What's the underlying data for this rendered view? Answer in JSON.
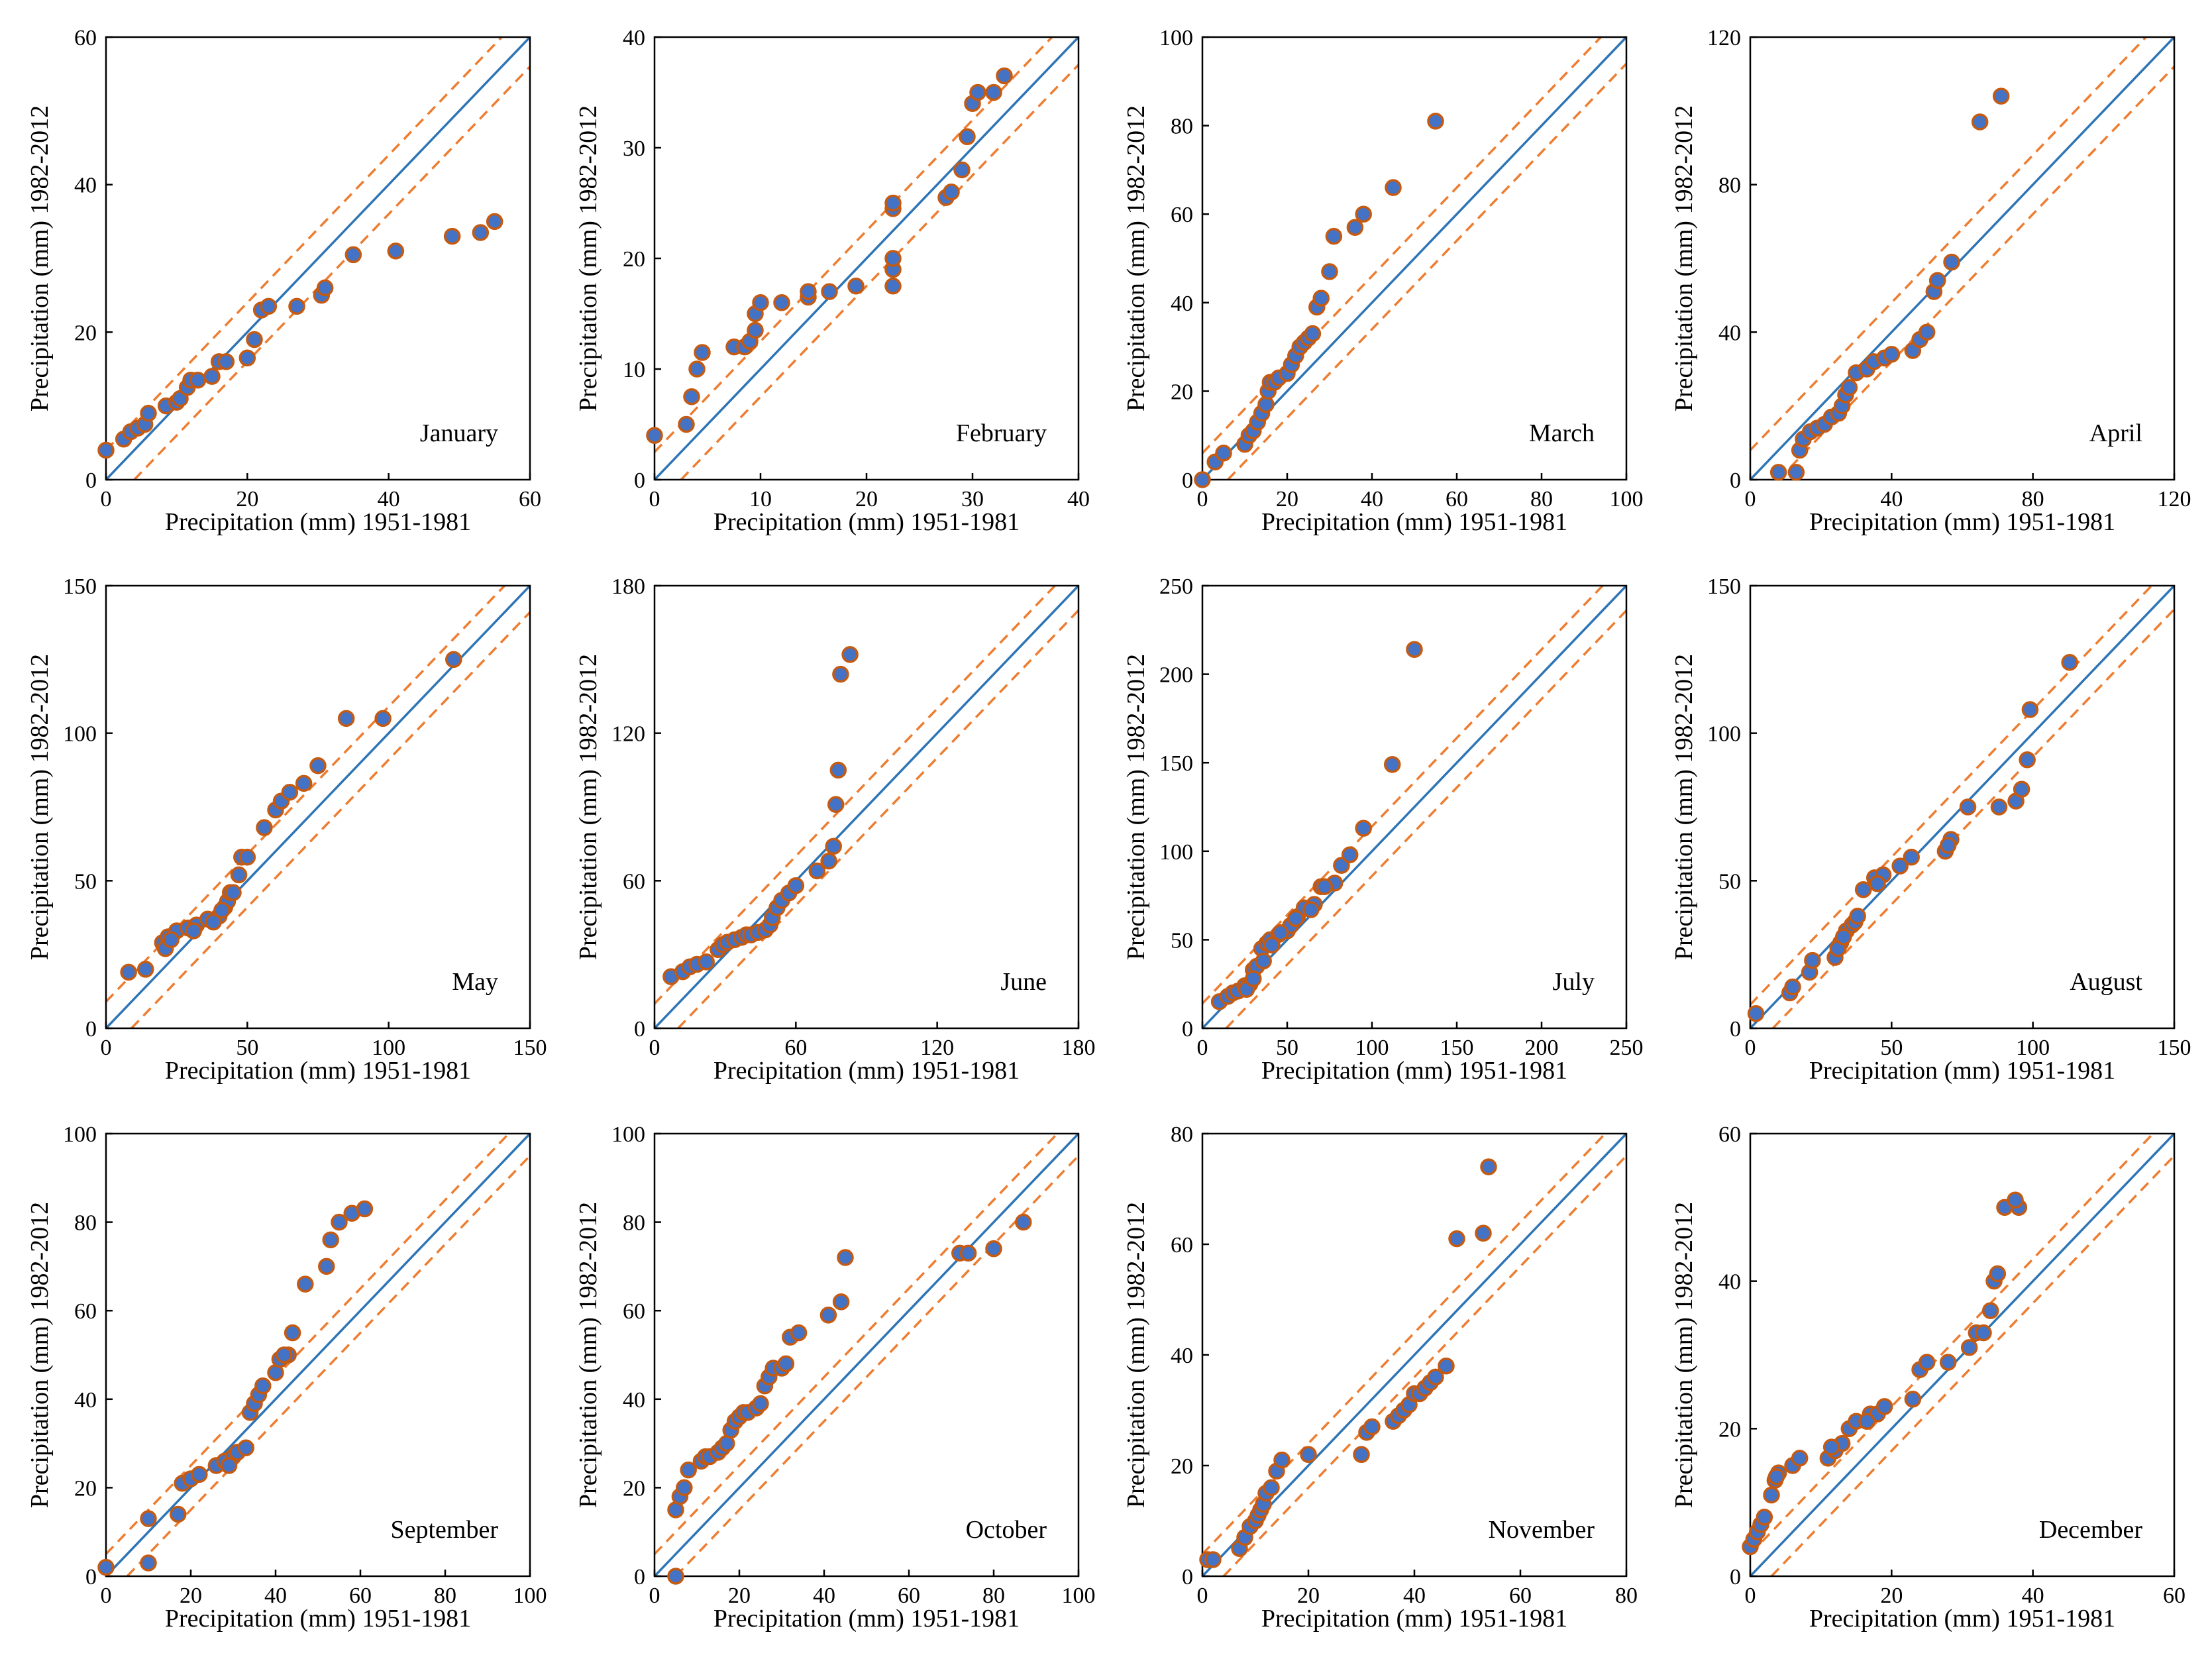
{
  "colors": {
    "identity_line": "#2E75B6",
    "bound_line": "#ED7D31",
    "point_fill": "#4472C4",
    "point_edge": "#C55A11",
    "axes": "#000000"
  },
  "chart_data": [
    {
      "type": "scatter",
      "title": "January",
      "xlabel": "Precipitation (mm) 1951-1981",
      "ylabel": "Precipitation (mm) 1982-2012",
      "xlim": [
        0,
        60
      ],
      "ylim": [
        0,
        60
      ],
      "xticks": [
        0,
        20,
        40,
        60
      ],
      "yticks": [
        0,
        20,
        40,
        60
      ],
      "band": 4,
      "x": [
        0,
        2.5,
        3.5,
        4.5,
        5.5,
        6,
        8.5,
        10,
        10.5,
        11.5,
        12,
        13,
        15,
        16,
        17,
        20,
        21,
        22,
        23,
        27,
        30.5,
        31,
        35,
        41,
        49,
        53,
        55
      ],
      "y": [
        4,
        5.5,
        6.5,
        7,
        7.5,
        9,
        10,
        10.5,
        11,
        12.5,
        13.5,
        13.5,
        14,
        16,
        16,
        16.5,
        19,
        23,
        23.5,
        23.5,
        25,
        26,
        30.5,
        31,
        33,
        33.5,
        35
      ]
    },
    {
      "type": "scatter",
      "title": "February",
      "xlabel": "Precipitation (mm) 1951-1981",
      "ylabel": "Precipitation (mm) 1982-2012",
      "xlim": [
        0,
        40
      ],
      "ylim": [
        0,
        40
      ],
      "xticks": [
        0,
        10,
        20,
        30,
        40
      ],
      "yticks": [
        0,
        10,
        20,
        30,
        40
      ],
      "band": 2.5,
      "x": [
        0,
        3,
        3.5,
        4,
        4.5,
        7.5,
        8.5,
        9,
        9.5,
        9.5,
        10,
        12,
        14.5,
        14.5,
        16.5,
        19,
        22.5,
        22.5,
        22.5,
        22.5,
        22.5,
        27.5,
        28,
        29,
        29.5,
        30,
        30.5,
        32,
        33
      ],
      "y": [
        4,
        5,
        7.5,
        10,
        11.5,
        12,
        12,
        12.5,
        13.5,
        15,
        16,
        16,
        16.5,
        17,
        17,
        17.5,
        17.5,
        19,
        20,
        24.5,
        25,
        25.5,
        26,
        28,
        31,
        34,
        35,
        35,
        36.5
      ]
    },
    {
      "type": "scatter",
      "title": "March",
      "xlabel": "Precipitation (mm) 1951-1981",
      "ylabel": "Precipitation (mm) 1982-2012",
      "xlim": [
        0,
        100
      ],
      "ylim": [
        0,
        100
      ],
      "xticks": [
        0,
        20,
        40,
        60,
        80,
        100
      ],
      "yticks": [
        0,
        20,
        40,
        60,
        80,
        100
      ],
      "band": 6,
      "x": [
        0,
        3,
        5,
        10,
        11,
        12,
        13,
        14,
        15,
        15.5,
        16,
        17,
        18,
        20,
        21,
        22,
        23,
        24,
        25,
        26,
        27,
        28,
        30,
        31,
        36,
        38,
        45,
        55
      ],
      "y": [
        0,
        4,
        6,
        8,
        10,
        11,
        13,
        15,
        17,
        20,
        22,
        22,
        23,
        24,
        26,
        28,
        30,
        31,
        32,
        33,
        39,
        41,
        47,
        55,
        57,
        60,
        66,
        81
      ]
    },
    {
      "type": "scatter",
      "title": "April",
      "xlabel": "Precipitation (mm) 1951-1981",
      "ylabel": "Precipitation (mm) 1982-2012",
      "xlim": [
        0,
        120
      ],
      "ylim": [
        0,
        120
      ],
      "xticks": [
        0,
        40,
        80,
        120
      ],
      "yticks": [
        0,
        40,
        80,
        120
      ],
      "band": 8,
      "x": [
        8,
        13,
        14,
        15,
        17,
        19,
        21,
        23,
        25,
        26,
        27,
        28,
        30,
        33,
        35,
        38,
        40,
        46,
        48,
        50,
        52,
        53,
        57,
        65,
        71
      ],
      "y": [
        2,
        2,
        8,
        11,
        13,
        14,
        15,
        17,
        18,
        20,
        23,
        25,
        29,
        30,
        32,
        33,
        34,
        35,
        38,
        40,
        51,
        54,
        59,
        97,
        104
      ]
    },
    {
      "type": "scatter",
      "title": "May",
      "xlabel": "Precipitation (mm) 1951-1981",
      "ylabel": "Precipitation (mm) 1982-2012",
      "xlim": [
        0,
        150
      ],
      "ylim": [
        0,
        150
      ],
      "xticks": [
        0,
        50,
        100,
        150
      ],
      "yticks": [
        0,
        50,
        100,
        150
      ],
      "band": 9,
      "x": [
        8,
        14,
        20,
        22,
        25,
        29,
        32,
        36,
        40,
        42,
        43,
        44,
        47,
        48,
        50,
        56,
        60,
        62,
        65,
        70,
        75,
        85,
        98,
        123
      ],
      "y": [
        19,
        20,
        29,
        31,
        33,
        34,
        35,
        37,
        38,
        41,
        43,
        46,
        52,
        58,
        58,
        68,
        74,
        77,
        80,
        83,
        89,
        105,
        105,
        125
      ],
      "x_more": [
        21,
        23,
        31,
        38,
        41,
        45
      ],
      "y_more": [
        27,
        30,
        33,
        36,
        40,
        46
      ]
    },
    {
      "type": "scatter",
      "title": "June",
      "xlabel": "Precipitation (mm) 1951-1981",
      "ylabel": "Precipitation (mm) 1982-2012",
      "xlim": [
        0,
        180
      ],
      "ylim": [
        0,
        180
      ],
      "xticks": [
        0,
        60,
        120,
        180
      ],
      "yticks": [
        0,
        60,
        120,
        180
      ],
      "band": 10,
      "x": [
        7,
        12,
        15,
        18,
        22,
        27,
        29,
        31,
        34,
        37,
        39,
        41,
        44,
        47,
        49,
        50,
        52,
        54,
        57,
        60,
        69,
        74,
        76,
        77,
        78,
        83
      ],
      "y": [
        21,
        23,
        25,
        26,
        27,
        32,
        34,
        35,
        36,
        37,
        38,
        38,
        39,
        40,
        42,
        45,
        49,
        52,
        55,
        58,
        64,
        68,
        74,
        91,
        105,
        152
      ],
      "x_more": [
        79
      ],
      "y_more": [
        144
      ]
    },
    {
      "type": "scatter",
      "title": "July",
      "xlabel": "Precipitation (mm) 1951-1981",
      "ylabel": "Precipitation (mm) 1982-2012",
      "xlim": [
        0,
        250
      ],
      "ylim": [
        0,
        250
      ],
      "xticks": [
        0,
        50,
        100,
        150,
        200,
        250
      ],
      "yticks": [
        0,
        50,
        100,
        150,
        200,
        250
      ],
      "band": 14,
      "x": [
        10,
        15,
        18,
        21,
        25,
        28,
        30,
        32,
        35,
        38,
        40,
        45,
        50,
        52,
        56,
        60,
        66,
        70,
        78,
        82,
        87,
        95,
        112,
        125
      ],
      "y": [
        15,
        18,
        20,
        21,
        24,
        25,
        33,
        35,
        45,
        48,
        50,
        53,
        55,
        58,
        63,
        68,
        70,
        80,
        82,
        92,
        98,
        113,
        149,
        214
      ],
      "x_more": [
        26,
        30,
        36,
        41,
        46,
        55,
        64,
        72
      ],
      "y_more": [
        22,
        28,
        38,
        47,
        54,
        62,
        67,
        80
      ]
    },
    {
      "type": "scatter",
      "title": "August",
      "xlabel": "Precipitation (mm) 1951-1981",
      "ylabel": "Precipitation (mm) 1982-2012",
      "xlim": [
        0,
        150
      ],
      "ylim": [
        0,
        150
      ],
      "xticks": [
        0,
        50,
        100,
        150
      ],
      "yticks": [
        0,
        50,
        100,
        150
      ],
      "band": 8,
      "x": [
        2,
        14,
        21,
        22,
        30,
        32,
        34,
        36,
        37,
        40,
        44,
        47,
        53,
        57,
        69,
        71,
        77,
        88,
        94,
        96,
        98,
        99,
        113
      ],
      "y": [
        5,
        12,
        19,
        23,
        24,
        29,
        33,
        35,
        36,
        47,
        51,
        52,
        55,
        58,
        60,
        64,
        75,
        75,
        77,
        81,
        91,
        108,
        124
      ],
      "x_more": [
        15,
        31,
        33,
        38,
        45,
        70
      ],
      "y_more": [
        14,
        27,
        31,
        38,
        49,
        62
      ]
    },
    {
      "type": "scatter",
      "title": "September",
      "xlabel": "Precipitation (mm) 1951-1981",
      "ylabel": "Precipitation (mm) 1982-2012",
      "xlim": [
        0,
        100
      ],
      "ylim": [
        0,
        100
      ],
      "xticks": [
        0,
        20,
        40,
        60,
        80,
        100
      ],
      "yticks": [
        0,
        20,
        40,
        60,
        80,
        100
      ],
      "band": 5,
      "x": [
        0,
        10,
        10,
        17,
        18,
        20,
        22,
        26,
        28,
        30,
        31,
        33,
        34,
        35,
        36,
        37,
        40,
        41,
        43,
        44,
        47,
        52,
        53,
        55,
        58,
        61
      ],
      "y": [
        2,
        3,
        13,
        14,
        21,
        22,
        23,
        25,
        26,
        27,
        28,
        29,
        37,
        39,
        41,
        43,
        46,
        49,
        50,
        55,
        66,
        70,
        76,
        80,
        82,
        83
      ],
      "x_more": [
        29,
        42
      ],
      "y_more": [
        25,
        50
      ]
    },
    {
      "type": "scatter",
      "title": "October",
      "xlabel": "Precipitation (mm) 1951-1981",
      "ylabel": "Precipitation (mm) 1982-2012",
      "xlim": [
        0,
        100
      ],
      "ylim": [
        0,
        100
      ],
      "xticks": [
        0,
        20,
        40,
        60,
        80,
        100
      ],
      "yticks": [
        0,
        20,
        40,
        60,
        80,
        100
      ],
      "band": 5,
      "x": [
        5,
        5,
        6,
        7,
        8,
        11,
        12,
        13,
        15,
        16,
        17,
        18,
        19,
        20,
        21,
        22,
        24,
        25,
        26,
        27,
        28,
        30,
        31,
        32,
        34,
        41,
        44,
        45,
        72,
        74,
        80,
        87
      ],
      "y": [
        0,
        15,
        18,
        20,
        24,
        26,
        27,
        27,
        28,
        29,
        30,
        33,
        35,
        36,
        37,
        37,
        38,
        39,
        43,
        45,
        47,
        47,
        48,
        54,
        55,
        59,
        62,
        72,
        73,
        73,
        74,
        80
      ]
    },
    {
      "type": "scatter",
      "title": "November",
      "xlabel": "Precipitation (mm) 1951-1981",
      "ylabel": "Precipitation (mm) 1982-2012",
      "xlim": [
        0,
        80
      ],
      "ylim": [
        0,
        80
      ],
      "xticks": [
        0,
        20,
        40,
        60,
        80
      ],
      "yticks": [
        0,
        20,
        40,
        60,
        80
      ],
      "band": 4,
      "x": [
        1,
        2,
        7,
        8,
        9,
        10,
        10.5,
        11,
        11.5,
        12,
        13,
        14,
        15,
        20,
        30,
        31,
        32,
        36,
        37,
        38,
        39,
        40,
        41,
        42,
        43,
        44,
        46,
        48,
        53,
        54
      ],
      "y": [
        3,
        3,
        5,
        7,
        9,
        10,
        11,
        12,
        13,
        15,
        16,
        19,
        21,
        22,
        22,
        26,
        27,
        28,
        29,
        30,
        31,
        33,
        33,
        34,
        35,
        36,
        38,
        61,
        62,
        74
      ]
    },
    {
      "type": "scatter",
      "title": "December",
      "xlabel": "Precipitation (mm) 1951-1981",
      "ylabel": "Precipitation (mm) 1982-2012",
      "xlim": [
        0,
        60
      ],
      "ylim": [
        0,
        60
      ],
      "xticks": [
        0,
        20,
        40,
        60
      ],
      "yticks": [
        0,
        20,
        40,
        60
      ],
      "band": 3,
      "x": [
        0,
        0.5,
        1,
        1.5,
        2,
        3,
        3.5,
        4,
        6,
        7,
        11,
        12,
        13,
        14,
        15,
        17,
        18,
        19,
        23,
        24,
        25,
        28,
        31,
        32,
        33,
        34,
        34.5,
        35,
        38
      ],
      "y": [
        4,
        5,
        6,
        7,
        8,
        11,
        13,
        14,
        15,
        16,
        16,
        17,
        18,
        20,
        21,
        22,
        22,
        23,
        24,
        28,
        29,
        29,
        31,
        33,
        33,
        36,
        40,
        41,
        50
      ],
      "x_more": [
        3.7,
        11.5,
        16.5,
        36,
        37.5
      ],
      "y_more": [
        13.5,
        17.5,
        21,
        50,
        51
      ]
    }
  ]
}
